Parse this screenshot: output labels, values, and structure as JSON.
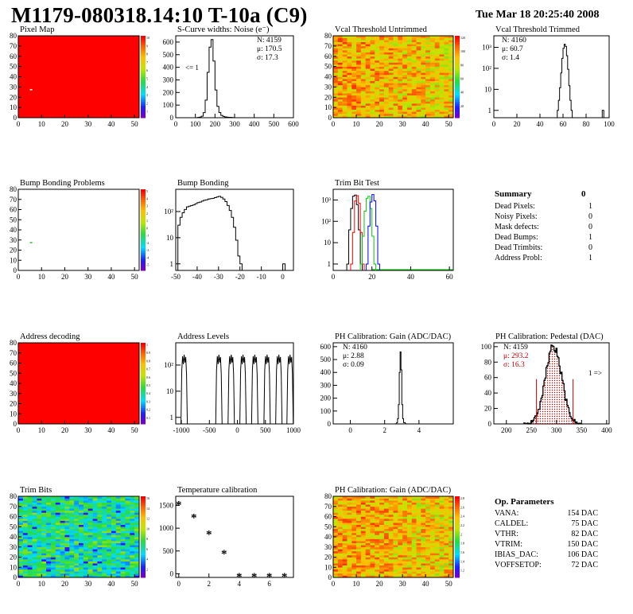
{
  "header": {
    "title": "M1179-080318.14:10 T-10a (C9)",
    "date": "Tue Mar 18 20:25:40 2008"
  },
  "summary": {
    "title": "Summary",
    "total": "0",
    "rows": [
      {
        "label": "Dead Pixels:",
        "value": "1"
      },
      {
        "label": "Noisy Pixels:",
        "value": "0"
      },
      {
        "label": "Mask defects:",
        "value": "0"
      },
      {
        "label": "Dead Bumps:",
        "value": "1"
      },
      {
        "label": "Dead Trimbits:",
        "value": "0"
      },
      {
        "label": "Address Probl:",
        "value": "1"
      }
    ]
  },
  "op_parameters": {
    "title": "Op. Parameters",
    "rows": [
      {
        "label": "VANA:",
        "value": "154 DAC"
      },
      {
        "label": "CALDEL:",
        "value": "75 DAC"
      },
      {
        "label": "VTHR:",
        "value": "82 DAC"
      },
      {
        "label": "VTRIM:",
        "value": "150 DAC"
      },
      {
        "label": "IBIAS_DAC:",
        "value": "106 DAC"
      },
      {
        "label": "VOFFSETOP:",
        "value": "72 DAC"
      }
    ]
  },
  "chart_data": [
    {
      "id": "pixel-map",
      "type": "heatmap",
      "title": "Pixel Map",
      "x_ticks": [
        "0",
        "10",
        "20",
        "30",
        "40",
        "50"
      ],
      "y_ticks": [
        "0",
        "10",
        "20",
        "30",
        "40",
        "50",
        "60",
        "70",
        "80"
      ],
      "xlim": [
        0,
        52
      ],
      "ylim": [
        0,
        80
      ],
      "palette_ticks": [
        "1",
        "2",
        "3",
        "4",
        "5",
        "6",
        "7",
        "8",
        "9",
        "10"
      ],
      "fill": "#ff0000",
      "dead_pixel": [
        5,
        28
      ]
    },
    {
      "id": "s-curve",
      "type": "line",
      "title": "S-Curve widths: Noise (e⁻)",
      "x_ticks": [
        "0",
        "100",
        "200",
        "300",
        "400",
        "500",
        "600"
      ],
      "y_ticks": [
        "0",
        "100",
        "200",
        "300",
        "400",
        "500",
        "600"
      ],
      "xlim": [
        0,
        600
      ],
      "ylim": [
        0,
        650
      ],
      "stats": [
        "N: 4159",
        "μ: 170.5",
        "σ: 17.3"
      ],
      "underflow_label": "<= 1",
      "x": [
        100,
        110,
        120,
        130,
        140,
        150,
        160,
        170,
        180,
        190,
        200,
        210,
        220,
        230,
        240,
        250,
        260,
        270,
        280,
        290
      ],
      "y": [
        0,
        2,
        5,
        12,
        40,
        140,
        360,
        560,
        620,
        450,
        220,
        90,
        40,
        18,
        10,
        6,
        4,
        3,
        2,
        1
      ]
    },
    {
      "id": "vcal-untrimmed",
      "type": "heatmap",
      "title": "Vcal Threshold Untrimmed",
      "x_ticks": [
        "0",
        "10",
        "20",
        "30",
        "40",
        "50"
      ],
      "y_ticks": [
        "0",
        "10",
        "20",
        "30",
        "40",
        "50",
        "60",
        "70",
        "80"
      ],
      "palette_ticks": [
        "20",
        "40",
        "60",
        "80",
        "100",
        "120"
      ]
    },
    {
      "id": "vcal-trimmed",
      "type": "line",
      "title": "Vcal Threshold Trimmed",
      "log_y": true,
      "x_ticks": [
        "0",
        "20",
        "40",
        "60",
        "80",
        "100"
      ],
      "y_ticks": [
        "1",
        "10",
        "10²",
        "10³"
      ],
      "xlim": [
        0,
        100
      ],
      "stats": [
        "N: 4160",
        "μ: 60.7",
        "σ: 1.4"
      ],
      "x": [
        55,
        56,
        57,
        58,
        59,
        60,
        61,
        62,
        63,
        64,
        65,
        66,
        67
      ],
      "y": [
        1,
        3,
        12,
        60,
        300,
        900,
        1400,
        1100,
        400,
        90,
        15,
        3,
        1
      ],
      "outlier": {
        "x": 94,
        "y": 1
      }
    },
    {
      "id": "bump-map",
      "type": "heatmap",
      "title": "Bump Bonding Problems",
      "x_ticks": [
        "0",
        "10",
        "20",
        "30",
        "40",
        "50"
      ],
      "y_ticks": [
        "0",
        "10",
        "20",
        "30",
        "40",
        "50",
        "60",
        "70",
        "80"
      ],
      "palette_ticks": [
        "-5",
        "-4",
        "-3",
        "-2",
        "-1",
        "0",
        "1",
        "2",
        "3",
        "4",
        "5"
      ],
      "dead_bump": [
        5,
        28
      ]
    },
    {
      "id": "bump-bonding",
      "type": "line",
      "title": "Bump Bonding",
      "log_y": true,
      "x_ticks": [
        "-50",
        "-40",
        "-30",
        "-20",
        "-10",
        "0"
      ],
      "y_ticks": [
        "1",
        "10",
        "10²"
      ],
      "xlim": [
        -50,
        5
      ],
      "x": [
        -49,
        -48,
        -47,
        -46,
        -45,
        -44,
        -43,
        -42,
        -41,
        -40,
        -39,
        -38,
        -37,
        -36,
        -35,
        -34,
        -33,
        -32,
        -31,
        -30,
        -29,
        -28,
        -27,
        -26,
        -25,
        -24,
        -23,
        -22,
        -21,
        -20
      ],
      "y": [
        30,
        60,
        90,
        120,
        150,
        160,
        170,
        180,
        200,
        220,
        230,
        250,
        270,
        280,
        300,
        310,
        320,
        340,
        360,
        380,
        350,
        300,
        240,
        170,
        110,
        60,
        25,
        8,
        2,
        1
      ],
      "outlier": {
        "x": 0,
        "y": 1
      }
    },
    {
      "id": "trim-bit-test",
      "type": "line",
      "title": "Trim Bit Test",
      "log_y": true,
      "x_ticks": [
        "0",
        "20",
        "40",
        "60"
      ],
      "y_ticks": [
        "1",
        "10",
        "10²",
        "10³"
      ],
      "xlim": [
        0,
        62
      ],
      "series": [
        {
          "color": "#000000",
          "x": [
            7,
            8,
            9,
            10,
            11,
            12,
            13,
            14
          ],
          "y": [
            1,
            40,
            400,
            1500,
            1700,
            600,
            40,
            1
          ]
        },
        {
          "color": "#ff0000",
          "x": [
            9,
            10,
            11,
            12,
            13,
            14,
            15
          ],
          "y": [
            1,
            30,
            900,
            1600,
            700,
            30,
            1
          ]
        },
        {
          "color": "#00cc00",
          "x": [
            14,
            15,
            16,
            17,
            18,
            19,
            20,
            21
          ],
          "y": [
            1,
            20,
            300,
            1200,
            1500,
            400,
            20,
            1
          ]
        },
        {
          "color": "#0000ff",
          "x": [
            17,
            18,
            19,
            20,
            21,
            22,
            23
          ],
          "y": [
            1,
            60,
            800,
            1800,
            900,
            60,
            1
          ]
        }
      ]
    },
    {
      "id": "address-decoding",
      "type": "heatmap",
      "title": "Address decoding",
      "x_ticks": [
        "0",
        "10",
        "20",
        "30",
        "40",
        "50"
      ],
      "y_ticks": [
        "0",
        "10",
        "20",
        "30",
        "40",
        "50",
        "60",
        "70",
        "80"
      ],
      "palette_ticks": [
        "0.1",
        "0.2",
        "0.3",
        "0.4",
        "0.5",
        "0.6",
        "0.7",
        "0.8",
        "0.9",
        "1"
      ],
      "fill": "#ff0000"
    },
    {
      "id": "address-levels",
      "type": "line",
      "title": "Address Levels",
      "log_y": true,
      "x_ticks": [
        "-1000",
        "-500",
        "0",
        "500",
        "1000"
      ],
      "y_ticks": [
        "1",
        "10",
        "10²"
      ],
      "xlim": [
        -1100,
        1000
      ],
      "peaks": [
        -950,
        -330,
        -110,
        100,
        310,
        530,
        740,
        940
      ],
      "peak_height": 250
    },
    {
      "id": "ph-gain",
      "type": "line",
      "title": "PH Calibration: Gain (ADC/DAC)",
      "x_ticks": [
        "0",
        "2",
        "4"
      ],
      "y_ticks": [
        "0",
        "100",
        "200",
        "300",
        "400",
        "500",
        "600"
      ],
      "xlim": [
        -1,
        6
      ],
      "ylim": [
        0,
        630
      ],
      "stats": [
        "N: 4160",
        "μ: 2.88",
        "σ: 0.09"
      ],
      "x": [
        2.6,
        2.7,
        2.75,
        2.8,
        2.85,
        2.9,
        2.95,
        3.0,
        3.05,
        3.1,
        3.2
      ],
      "y": [
        1,
        10,
        40,
        150,
        400,
        560,
        420,
        150,
        40,
        10,
        1
      ]
    },
    {
      "id": "ph-pedestal",
      "type": "line",
      "title": "PH Calibration: Pedestal (DAC)",
      "x_ticks": [
        "200",
        "250",
        "300",
        "350",
        "400"
      ],
      "y_ticks": [
        "0",
        "20",
        "40",
        "60",
        "80",
        "100"
      ],
      "xlim": [
        175,
        405
      ],
      "ylim": [
        0,
        105
      ],
      "stats": [
        "N: 4159",
        "μ: 293.2",
        "σ: 16.3"
      ],
      "overflow_label": "1 =>",
      "cut_lines": [
        260,
        333
      ],
      "mu": 293.2,
      "sigma": 16.3,
      "amp": 100
    },
    {
      "id": "trim-bits",
      "type": "heatmap",
      "title": "Trim Bits",
      "x_ticks": [
        "0",
        "10",
        "20",
        "30",
        "40",
        "50"
      ],
      "y_ticks": [
        "0",
        "10",
        "20",
        "30",
        "40",
        "50",
        "60",
        "70",
        "80"
      ],
      "palette_ticks": [
        "2",
        "4",
        "6",
        "8",
        "10",
        "12",
        "14",
        "16"
      ]
    },
    {
      "id": "temperature-calibration",
      "type": "scatter",
      "title": "Temperature calibration",
      "x_ticks": [
        "0",
        "2",
        "4",
        "6"
      ],
      "y_ticks": [
        "0",
        "500",
        "1000",
        "1500"
      ],
      "xlim": [
        -0.2,
        7.6
      ],
      "ylim": [
        -80,
        1700
      ],
      "x": [
        0,
        1,
        2,
        3,
        4,
        5,
        6,
        7
      ],
      "y": [
        1550,
        1270,
        910,
        480,
        -30,
        -30,
        -30,
        -30
      ]
    },
    {
      "id": "ph-gain-map",
      "type": "heatmap",
      "title": "PH Calibration: Gain (ADC/DAC)",
      "x_ticks": [
        "0",
        "10",
        "20",
        "30",
        "40",
        "50"
      ],
      "y_ticks": [
        "0",
        "10",
        "20",
        "30",
        "40",
        "50",
        "60",
        "70",
        "80"
      ],
      "palette_ticks": [
        "1.2",
        "1.4",
        "1.6",
        "1.8",
        "2",
        "2.2",
        "2.4",
        "2.6",
        "2.8"
      ]
    }
  ]
}
